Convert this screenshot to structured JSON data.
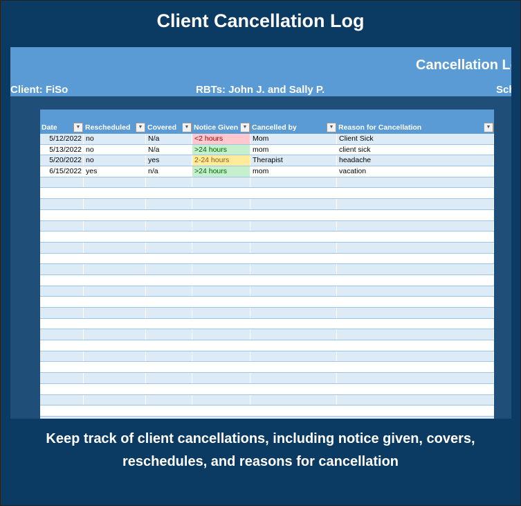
{
  "title": "Client Cancellation Log",
  "sheet": {
    "heading": "Cancellation Lo",
    "client": "Client: FiSo",
    "rbts": "RBTs: John J. and Sally P.",
    "sch": "Sch"
  },
  "table": {
    "columns": [
      "Date",
      "Rescheduled",
      "Covered",
      "Notice Given",
      "Cancelled by",
      "Reason for Cancellation"
    ],
    "rows": [
      {
        "date": "5/12/2022",
        "rescheduled": "no",
        "covered": "N/a",
        "notice": "<2 hours",
        "notice_level": "red",
        "cancelled_by": "Mom",
        "reason": "Client Sick"
      },
      {
        "date": "5/13/2022",
        "rescheduled": "no",
        "covered": "N/a",
        "notice": ">24 hours",
        "notice_level": "green",
        "cancelled_by": "mom",
        "reason": "client sick"
      },
      {
        "date": "5/20/2022",
        "rescheduled": "no",
        "covered": "yes",
        "notice": "2-24 hours",
        "notice_level": "yellow",
        "cancelled_by": "Therapist",
        "reason": "headache"
      },
      {
        "date": "6/15/2022",
        "rescheduled": "yes",
        "covered": "n/a",
        "notice": ">24 hours",
        "notice_level": "green",
        "cancelled_by": "mom",
        "reason": "vacation"
      }
    ]
  },
  "colors": {
    "red": {
      "bg": "#ffc7ce",
      "fg": "#9c0006"
    },
    "green": {
      "bg": "#c6efce",
      "fg": "#006100"
    },
    "yellow": {
      "bg": "#ffeb9c",
      "fg": "#9c5700"
    }
  },
  "footer": "Keep track of client cancellations, including notice given, covers, reschedules, and reasons for cancellation"
}
